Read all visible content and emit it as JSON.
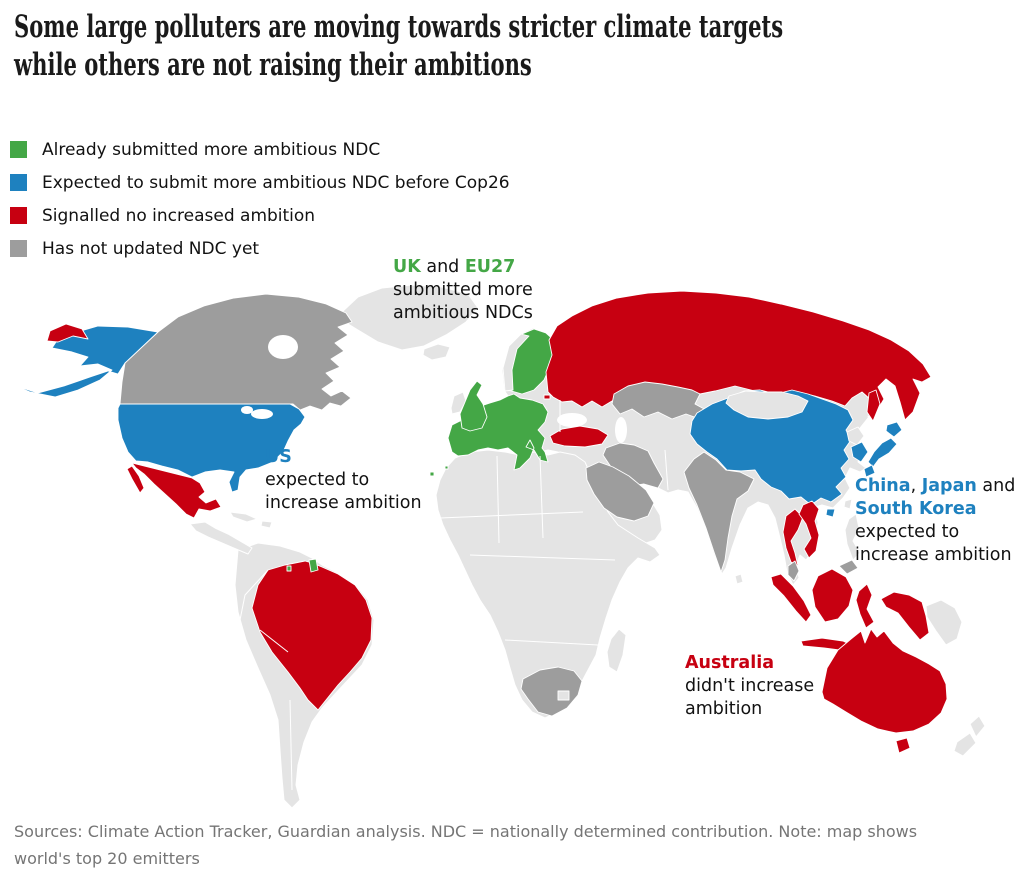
{
  "palette": {
    "green": "#44a746",
    "blue": "#1e81bf",
    "red": "#c70011",
    "gray": "#9d9d9d",
    "land": "#e4e4e4",
    "text": "#121212",
    "muted": "#757575"
  },
  "header": {
    "title_lines": [
      "Some large polluters are moving towards stricter climate targets",
      "while others are not raising their ambitions"
    ]
  },
  "legend": {
    "items": [
      {
        "label": "Already submitted more ambitious NDC",
        "color": "green"
      },
      {
        "label": "Expected to submit more ambitious NDC before Cop26",
        "color": "blue"
      },
      {
        "label": "Signalled no increased ambition",
        "color": "red"
      },
      {
        "label": "Has not updated NDC yet",
        "color": "gray"
      }
    ]
  },
  "annotations": [
    {
      "name": "eu-annotation",
      "lines": [
        [
          {
            "text": "UK",
            "color": "green",
            "bold": true
          },
          {
            "text": " and ",
            "color": "text"
          },
          {
            "text": "EU27",
            "color": "green",
            "bold": true
          }
        ],
        [
          {
            "text": "submitted more",
            "color": "text"
          }
        ],
        [
          {
            "text": "ambitious NDCs",
            "color": "text"
          }
        ]
      ]
    },
    {
      "name": "us-annotation",
      "lines": [
        [
          {
            "text": "US",
            "color": "blue",
            "bold": true
          }
        ],
        [
          {
            "text": "expected to",
            "color": "text"
          }
        ],
        [
          {
            "text": "increase ambition",
            "color": "text"
          }
        ]
      ]
    },
    {
      "name": "asia-annotation",
      "lines": [
        [
          {
            "text": "China",
            "color": "blue",
            "bold": true
          },
          {
            "text": ", ",
            "color": "text"
          },
          {
            "text": "Japan",
            "color": "blue",
            "bold": true
          },
          {
            "text": " and",
            "color": "text"
          }
        ],
        [
          {
            "text": "South Korea",
            "color": "blue",
            "bold": true
          }
        ],
        [
          {
            "text": "expected to",
            "color": "text"
          }
        ],
        [
          {
            "text": "increase ambition",
            "color": "text"
          }
        ]
      ]
    },
    {
      "name": "australia-annotation",
      "lines": [
        [
          {
            "text": "Australia",
            "color": "red",
            "bold": true
          }
        ],
        [
          {
            "text": "didn't increase",
            "color": "text"
          }
        ],
        [
          {
            "text": "ambition",
            "color": "text"
          }
        ]
      ]
    }
  ],
  "map": {
    "status_colors": {
      "submitted": "green",
      "expected": "blue",
      "no_increase": "red",
      "not_updated": "gray",
      "other": "land"
    },
    "countries": {
      "canada": "not_updated",
      "alaska": "expected",
      "us": "expected",
      "mexico": "no_increase",
      "brazil": "no_increase",
      "french-guiana": "submitted",
      "french-territories": "submitted",
      "eu27": "submitted",
      "uk": "submitted",
      "sweden-finland": "submitted",
      "norway": "other",
      "ireland": "other",
      "iceland": "other",
      "greenland": "other",
      "russia": "no_increase",
      "chukotka": "no_increase",
      "kaliningrad": "no_increase",
      "sakhalin": "no_increase",
      "turkey": "no_increase",
      "kazakhstan": "not_updated",
      "iran": "not_updated",
      "saudi-arabia": "not_updated",
      "india": "not_updated",
      "china": "expected",
      "hainan": "expected",
      "mongolia": "other",
      "north-korea": "other",
      "south-korea": "expected",
      "japan-hokkaido": "expected",
      "japan-honshu": "expected",
      "japan-kyushu": "expected",
      "taiwan": "other",
      "philippines": "other",
      "thailand": "no_increase",
      "vietnam": "no_increase",
      "malaysia-peninsula": "not_updated",
      "malaysia-borneo": "not_updated",
      "indonesia-sumatra": "no_increase",
      "indonesia-java": "no_increase",
      "indonesia-borneo": "no_increase",
      "indonesia-sulawesi": "no_increase",
      "indonesia-papua": "no_increase",
      "png": "other",
      "australia": "no_increase",
      "tasmania": "no_increase",
      "new-zealand-north": "other",
      "new-zealand-south": "other",
      "south-africa": "not_updated",
      "madagascar": "other",
      "africa": "other",
      "south-america": "other",
      "central-america": "other",
      "cuba": "other",
      "hispaniola": "other",
      "sri-lanka": "other",
      "eurasia": "other"
    }
  },
  "footer": {
    "line1": "Sources: Climate Action Tracker, Guardian analysis. NDC = nationally determined contribution. Note: map shows",
    "line2": "world's top 20 emitters"
  }
}
